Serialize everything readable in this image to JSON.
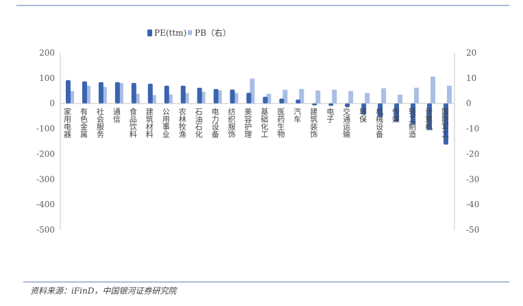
{
  "chart_data": {
    "type": "bar",
    "categories": [
      "家用电器",
      "有色金属",
      "社会服务",
      "通信",
      "食品饮料",
      "建筑材料",
      "公用事业",
      "农林牧渔",
      "石油石化",
      "电力设备",
      "纺织服饰",
      "美容护理",
      "基础化工",
      "医药生物",
      "汽车",
      "建筑装饰",
      "电子",
      "交通运输",
      "环保",
      "机械设备",
      "传媒",
      "轻工制造",
      "计算机",
      "国防军工"
    ],
    "series": [
      {
        "name": "PE(ttm)",
        "axis": "left",
        "color": "#3A64AE",
        "values": [
          92,
          87,
          84,
          84,
          81,
          78,
          70,
          70,
          62,
          57,
          55,
          42,
          26,
          19,
          15,
          -8,
          -10,
          -15,
          -45,
          -54,
          -72,
          -84,
          -105,
          -163
        ]
      },
      {
        "name": "PB（右）",
        "axis": "right",
        "color": "#A9BDE5",
        "values": [
          4.9,
          7.0,
          6.5,
          8.1,
          3.8,
          3.3,
          3.5,
          4.1,
          4.6,
          5.2,
          4.1,
          9.8,
          3.8,
          5.4,
          5.7,
          5.1,
          5.4,
          4.9,
          4.1,
          6.0,
          3.5,
          6.2,
          10.6,
          7.0
        ]
      }
    ],
    "ylim_left": [
      -500,
      200
    ],
    "yticks_left": [
      "200",
      "100",
      "0",
      "-100",
      "-200",
      "-300",
      "-400",
      "-500"
    ],
    "ylim_right": [
      -50,
      20
    ],
    "yticks_right": [
      "20",
      "10",
      "0",
      "-10",
      "-20",
      "-30",
      "-40",
      "-50"
    ],
    "legend": "top-center",
    "grid": false
  },
  "source": "资料来源：iFinD，中国银河证券研究院"
}
